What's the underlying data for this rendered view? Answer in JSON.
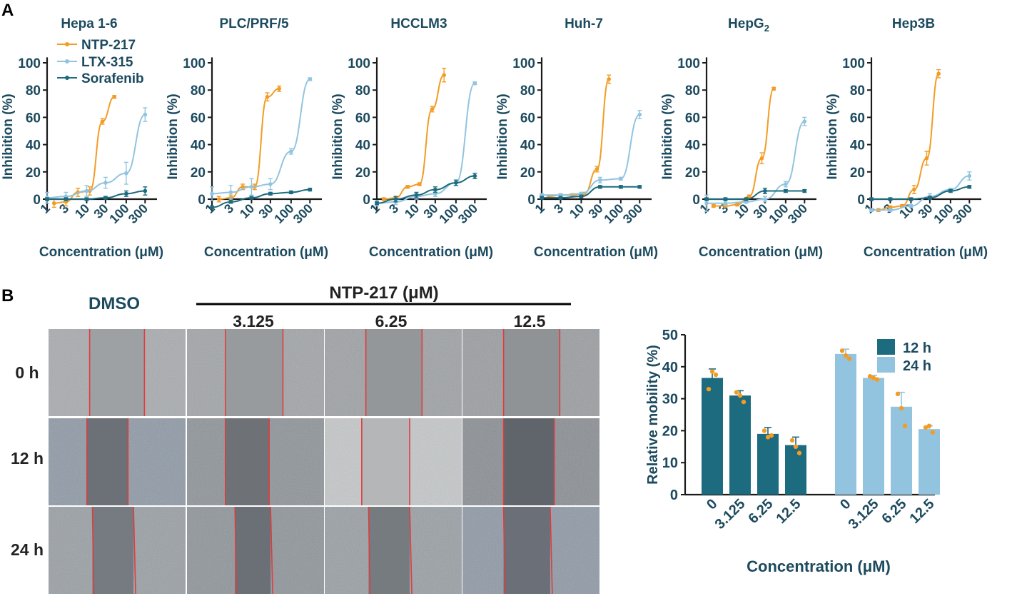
{
  "panels": {
    "a_label": "A",
    "b_label": "B"
  },
  "colors": {
    "ntp": "#f39c24",
    "ltx": "#92c4df",
    "sora": "#1c6b7f",
    "bar12": "#1c6b7f",
    "bar24": "#92c4df",
    "dot": "#f39c24",
    "wound_line": "#e03c3c",
    "axis": "#1a1a1a"
  },
  "legend": {
    "ntp": "NTP-217",
    "ltx": "LTX-315",
    "sora": "Sorafenib"
  },
  "chart_data": [
    {
      "type": "line",
      "title": "Hepa 1-6",
      "xlabel": "Concentration (μM)",
      "ylabel": "Inhibition (%)",
      "xscale": "log",
      "xlim": [
        1,
        600
      ],
      "ylim": [
        0,
        100
      ],
      "xticks": [
        "1",
        "3",
        "10",
        "30",
        "100",
        "300"
      ],
      "yticks": [
        "0",
        "20",
        "40",
        "60",
        "80",
        "100"
      ],
      "series": [
        {
          "name": "NTP-217",
          "x": [
            1.5,
            3,
            6,
            12,
            25,
            50
          ],
          "y": [
            -3,
            -2,
            5,
            6,
            57,
            75
          ],
          "err": [
            3,
            3,
            3,
            3,
            2,
            1
          ]
        },
        {
          "name": "LTX-315",
          "x": [
            1,
            3,
            10,
            30,
            100,
            300
          ],
          "y": [
            1,
            2,
            6,
            12,
            19,
            62
          ],
          "err": [
            4,
            3,
            4,
            4,
            8,
            5
          ]
        },
        {
          "name": "Sorafenib",
          "x": [
            1,
            3,
            10,
            30,
            100,
            300
          ],
          "y": [
            0,
            0,
            0,
            1,
            4,
            6
          ],
          "err": [
            1,
            1,
            1,
            1,
            2,
            3
          ]
        }
      ]
    },
    {
      "type": "line",
      "title": "PLC/PRF/5",
      "xlabel": "Concentration (μM)",
      "ylabel": "Inhibition (%)",
      "xscale": "log",
      "xlim": [
        1,
        600
      ],
      "ylim": [
        0,
        100
      ],
      "xticks": [
        "1",
        "3",
        "10",
        "30",
        "100",
        "300"
      ],
      "yticks": [
        "0",
        "20",
        "40",
        "60",
        "80",
        "100"
      ],
      "series": [
        {
          "name": "NTP-217",
          "x": [
            1.5,
            3,
            6,
            12,
            25,
            50
          ],
          "y": [
            0,
            1,
            9,
            9,
            75,
            81
          ],
          "err": [
            2,
            2,
            2,
            2,
            3,
            2
          ]
        },
        {
          "name": "LTX-315",
          "x": [
            1,
            3,
            10,
            30,
            100,
            300
          ],
          "y": [
            4,
            5,
            9,
            11,
            35,
            88
          ],
          "err": [
            5,
            5,
            6,
            4,
            2,
            1
          ]
        },
        {
          "name": "Sorafenib",
          "x": [
            1,
            3,
            10,
            30,
            100,
            300
          ],
          "y": [
            -6,
            -2,
            1,
            4,
            5,
            7
          ],
          "err": [
            1,
            1,
            1,
            1,
            1,
            1
          ]
        }
      ]
    },
    {
      "type": "line",
      "title": "HCCLM3",
      "xlabel": "Concentration (μM)",
      "ylabel": "Inhibition (%)",
      "xscale": "log",
      "xlim": [
        1,
        600
      ],
      "ylim": [
        0,
        100
      ],
      "xticks": [
        "1",
        "3",
        "10",
        "30",
        "100",
        "300"
      ],
      "yticks": [
        "0",
        "20",
        "40",
        "60",
        "80",
        "100"
      ],
      "series": [
        {
          "name": "NTP-217",
          "x": [
            1.5,
            3,
            6,
            12,
            25,
            50
          ],
          "y": [
            0,
            1,
            9,
            11,
            66,
            91
          ],
          "err": [
            1,
            1,
            1,
            1,
            2,
            5
          ]
        },
        {
          "name": "LTX-315",
          "x": [
            1,
            3,
            10,
            30,
            100,
            300
          ],
          "y": [
            -3,
            -2,
            2,
            4,
            12,
            85
          ],
          "err": [
            2,
            2,
            2,
            2,
            2,
            1
          ]
        },
        {
          "name": "Sorafenib",
          "x": [
            1,
            3,
            10,
            30,
            100,
            300
          ],
          "y": [
            -3,
            0,
            3,
            7,
            12,
            17
          ],
          "err": [
            1,
            2,
            2,
            2,
            2,
            2
          ]
        }
      ]
    },
    {
      "type": "line",
      "title": "Huh-7",
      "xlabel": "Concentration (μM)",
      "ylabel": "Inhibition (%)",
      "xscale": "log",
      "xlim": [
        1,
        600
      ],
      "ylim": [
        0,
        100
      ],
      "xticks": [
        "1",
        "3",
        "10",
        "30",
        "100",
        "300"
      ],
      "yticks": [
        "0",
        "20",
        "40",
        "60",
        "80",
        "100"
      ],
      "series": [
        {
          "name": "NTP-217",
          "x": [
            1.5,
            3,
            6,
            12,
            25,
            50
          ],
          "y": [
            2,
            3,
            3,
            4,
            22,
            88
          ],
          "err": [
            1,
            1,
            1,
            1,
            2,
            3
          ]
        },
        {
          "name": "LTX-315",
          "x": [
            1,
            3,
            10,
            30,
            100,
            300
          ],
          "y": [
            3,
            3,
            4,
            14,
            15,
            62
          ],
          "err": [
            1,
            1,
            1,
            2,
            1,
            3
          ]
        },
        {
          "name": "Sorafenib",
          "x": [
            1,
            3,
            10,
            30,
            100,
            300
          ],
          "y": [
            1,
            1,
            2,
            9,
            9,
            9
          ],
          "err": [
            1,
            1,
            1,
            1,
            1,
            1
          ]
        }
      ]
    },
    {
      "type": "line",
      "title": "HepG",
      "title_sub": "2",
      "xlabel": "Concentration (μM)",
      "ylabel": "Inhibition (%)",
      "xscale": "log",
      "xlim": [
        1,
        600
      ],
      "ylim": [
        0,
        100
      ],
      "xticks": [
        "1",
        "3",
        "10",
        "30",
        "100",
        "300"
      ],
      "yticks": [
        "0",
        "20",
        "40",
        "60",
        "80",
        "100"
      ],
      "series": [
        {
          "name": "NTP-217",
          "x": [
            1.5,
            3,
            6,
            12,
            25,
            50
          ],
          "y": [
            -5,
            -5,
            -4,
            2,
            30,
            81
          ],
          "err": [
            1,
            1,
            1,
            1,
            4,
            1
          ]
        },
        {
          "name": "LTX-315",
          "x": [
            1,
            3,
            10,
            30,
            100,
            300
          ],
          "y": [
            -3,
            -3,
            -2,
            0,
            11,
            57
          ],
          "err": [
            6,
            2,
            1,
            2,
            2,
            3
          ]
        },
        {
          "name": "Sorafenib",
          "x": [
            1,
            3,
            10,
            30,
            100,
            300
          ],
          "y": [
            0,
            0,
            0,
            6,
            6,
            6
          ],
          "err": [
            1,
            1,
            1,
            2,
            1,
            1
          ]
        }
      ]
    },
    {
      "type": "line",
      "title": "Hep3B",
      "xlabel": "Concentration (μM)",
      "ylabel": "Inhibition (%)",
      "xscale": "log",
      "xlim": [
        1,
        600
      ],
      "ylim": [
        0,
        100
      ],
      "xticks": [
        "1",
        "3",
        "10",
        "30",
        "100",
        "300"
      ],
      "yticks": [
        "0",
        "20",
        "40",
        "60",
        "80",
        "100"
      ],
      "series": [
        {
          "name": "NTP-217",
          "x": [
            1.5,
            3,
            6,
            12,
            25,
            50
          ],
          "y": [
            -8,
            -6,
            -5,
            7,
            30,
            92
          ],
          "err": [
            1,
            1,
            1,
            3,
            5,
            3
          ]
        },
        {
          "name": "LTX-315",
          "x": [
            1,
            3,
            10,
            30,
            100,
            300
          ],
          "y": [
            -8,
            -8,
            -5,
            2,
            7,
            17
          ],
          "err": [
            1,
            1,
            1,
            2,
            1,
            3
          ]
        },
        {
          "name": "Sorafenib",
          "x": [
            1,
            3,
            10,
            30,
            100,
            300
          ],
          "y": [
            0,
            0,
            0,
            1,
            6,
            9
          ],
          "err": [
            1,
            1,
            1,
            1,
            1,
            1
          ]
        }
      ]
    },
    {
      "type": "bar",
      "title": "",
      "xlabel": "Concentration (μM)",
      "ylabel": "Relative mobility (%)",
      "ylim": [
        0,
        50
      ],
      "yticks": [
        "0",
        "10",
        "20",
        "30",
        "40",
        "50"
      ],
      "categories": [
        "0",
        "3.125",
        "6.25",
        "12.5"
      ],
      "series": [
        {
          "name": "12 h",
          "values": [
            36.5,
            31,
            19,
            15.5
          ],
          "err": [
            2.8,
            1.5,
            2,
            2.5
          ],
          "points": [
            [
              33,
              38.5,
              37.5
            ],
            [
              32,
              31,
              29
            ],
            [
              20,
              18,
              18.5
            ],
            [
              17,
              15,
              13
            ]
          ]
        },
        {
          "name": "24 h",
          "values": [
            44,
            36.5,
            27.5,
            20.5
          ],
          "err": [
            1.5,
            0.8,
            4.5,
            1
          ],
          "points": [
            [
              45,
              43.5,
              42.5
            ],
            [
              37,
              36.5,
              36
            ],
            [
              31.5,
              27,
              21.5
            ],
            [
              21,
              21.5,
              19.5
            ]
          ]
        }
      ],
      "legend": [
        "12 h",
        "24 h"
      ]
    }
  ],
  "scratch_assay": {
    "header": "NTP-217 (μM)",
    "columns": [
      "DMSO",
      "3.125",
      "6.25",
      "12.5"
    ],
    "rows": [
      "0 h",
      "12 h",
      "24 h"
    ]
  }
}
